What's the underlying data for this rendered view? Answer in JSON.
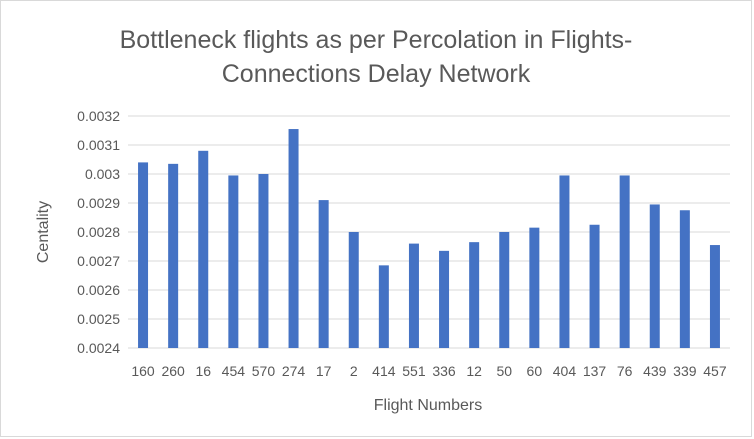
{
  "chart_data": {
    "type": "bar",
    "title": "Bottleneck flights as per Percolation in Flights-Connections Delay Network",
    "title_lines": [
      "Bottleneck flights as per Percolation in Flights-",
      "Connections  Delay Network"
    ],
    "xlabel": "Flight Numbers",
    "ylabel": "Centality",
    "ylim": [
      0.0024,
      0.0032
    ],
    "yticks": [
      "0.0024",
      "0.0025",
      "0.0026",
      "0.0027",
      "0.0028",
      "0.0029",
      "0.003",
      "0.0031",
      "0.0032"
    ],
    "categories": [
      "160",
      "260",
      "16",
      "454",
      "570",
      "274",
      "17",
      "2",
      "414",
      "551",
      "336",
      "12",
      "50",
      "60",
      "404",
      "137",
      "76",
      "439",
      "339",
      "457"
    ],
    "values": [
      0.00304,
      0.003035,
      0.00308,
      0.002995,
      0.003,
      0.003155,
      0.00291,
      0.0028,
      0.002685,
      0.00276,
      0.002735,
      0.002765,
      0.0028,
      0.002815,
      0.002995,
      0.002825,
      0.002995,
      0.002895,
      0.002875,
      0.002755
    ],
    "bar_color": "#4472c4",
    "grid": true,
    "legend": false
  }
}
